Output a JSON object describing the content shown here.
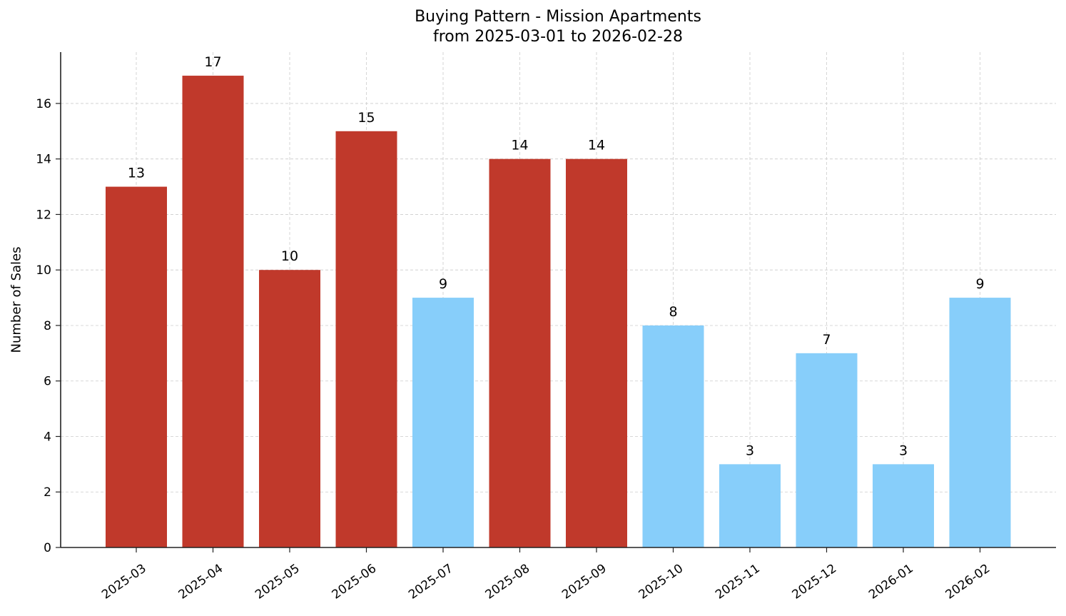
{
  "title": {
    "line1": "Buying Pattern - Mission Apartments",
    "line2": "from 2025-03-01 to 2026-02-28"
  },
  "colors": {
    "above_threshold": "#c0392b",
    "below_threshold": "#87cefa",
    "grid": "#cccccc",
    "axis": "#222222"
  },
  "chart_data": {
    "type": "bar",
    "title": "Buying Pattern - Mission Apartments\nfrom 2025-03-01 to 2026-02-28",
    "xlabel": "",
    "ylabel": "Number of Sales",
    "categories": [
      "2025-03",
      "2025-04",
      "2025-05",
      "2025-06",
      "2025-07",
      "2025-08",
      "2025-09",
      "2025-10",
      "2025-11",
      "2025-12",
      "2026-01",
      "2026-02"
    ],
    "values": [
      13,
      17,
      10,
      15,
      9,
      14,
      14,
      8,
      3,
      7,
      3,
      9
    ],
    "bar_colors": [
      "#c0392b",
      "#c0392b",
      "#c0392b",
      "#c0392b",
      "#87cefa",
      "#c0392b",
      "#c0392b",
      "#87cefa",
      "#87cefa",
      "#87cefa",
      "#87cefa",
      "#87cefa"
    ],
    "data_labels": [
      "13",
      "17",
      "10",
      "15",
      "9",
      "14",
      "14",
      "8",
      "3",
      "7",
      "3",
      "9"
    ],
    "ylim": [
      0,
      17.85
    ],
    "yticks": [
      0,
      2,
      4,
      6,
      8,
      10,
      12,
      14,
      16
    ],
    "grid": true,
    "legend": null
  }
}
